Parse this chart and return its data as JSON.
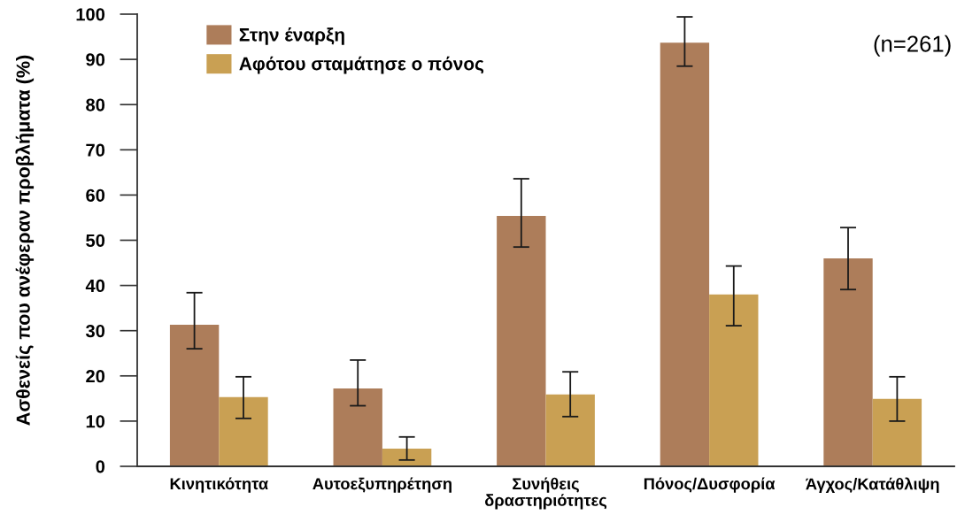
{
  "chart_data": {
    "type": "bar",
    "ylabel": "Ασθενείς που ανέφεραν προβλήματα (%)",
    "categories": [
      "Κινητικότητα",
      "Αυτοεξυπηρέτηση",
      "Συνήθεις\nδραστηριότητες",
      "Πόνος/Δυσφορία",
      "Άγχος/Κατάθλιψη"
    ],
    "series": [
      {
        "name": "Στην έναρξη",
        "color": "#ad7d5a",
        "values": [
          31.3,
          17.2,
          55.4,
          93.7,
          46.0
        ],
        "errors": [
          [
            26.0,
            38.4
          ],
          [
            13.4,
            23.5
          ],
          [
            48.5,
            63.6
          ],
          [
            88.5,
            99.4
          ],
          [
            39.1,
            52.8
          ]
        ]
      },
      {
        "name": "Αφότου σταμάτησε ο πόνος",
        "color": "#c9a053",
        "values": [
          15.3,
          3.9,
          15.9,
          38.0,
          14.9
        ],
        "errors": [
          [
            10.6,
            19.8
          ],
          [
            1.4,
            6.5
          ],
          [
            11.0,
            20.9
          ],
          [
            31.1,
            44.3
          ],
          [
            10.0,
            19.8
          ]
        ]
      }
    ],
    "ylim": [
      0,
      100
    ],
    "yticks": [
      0,
      10,
      20,
      30,
      40,
      50,
      60,
      70,
      80,
      90,
      100
    ],
    "legend": "top left",
    "annotations": [
      "(n=261)"
    ]
  }
}
